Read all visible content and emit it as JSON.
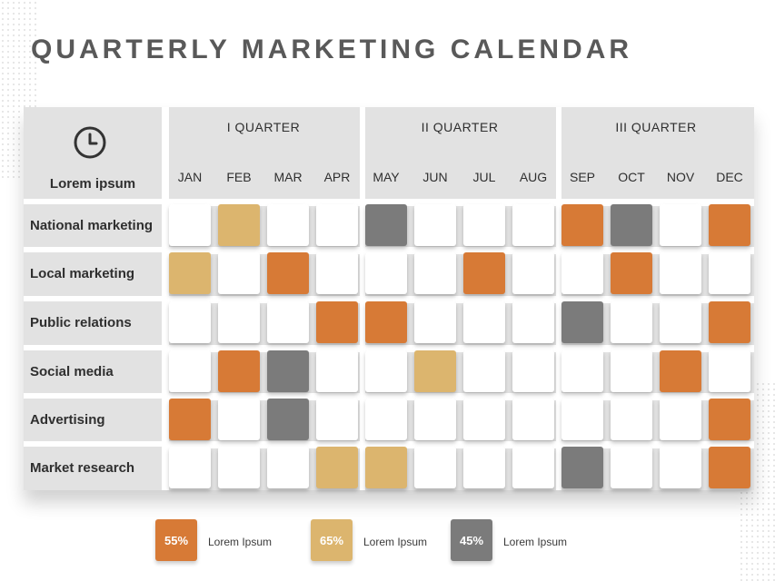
{
  "title": "QUARTERLY MARKETING CALENDAR",
  "corner_label": "Lorem ipsum",
  "corner_icon": "clock-icon",
  "quarters": [
    "I  QUARTER",
    "II  QUARTER",
    "III  QUARTER"
  ],
  "months": [
    "JAN",
    "FEB",
    "MAR",
    "APR",
    "MAY",
    "JUN",
    "JUL",
    "AUG",
    "SEP",
    "OCT",
    "NOV",
    "DEC"
  ],
  "colors": {
    "orange": "#d77a36",
    "tan": "#dcb56e",
    "gray": "#7b7b7b",
    "white": "#ffffff"
  },
  "rows": [
    {
      "label": "National marketing",
      "cells": [
        "w",
        "t",
        "w",
        "w",
        "g",
        "w",
        "w",
        "w",
        "o",
        "g",
        "w",
        "o"
      ]
    },
    {
      "label": "Local marketing",
      "cells": [
        "t",
        "w",
        "o",
        "w",
        "w",
        "w",
        "o",
        "w",
        "w",
        "o",
        "w",
        "w"
      ]
    },
    {
      "label": "Public relations",
      "cells": [
        "w",
        "w",
        "w",
        "o",
        "o",
        "w",
        "w",
        "w",
        "g",
        "w",
        "w",
        "o"
      ]
    },
    {
      "label": "Social media",
      "cells": [
        "w",
        "o",
        "g",
        "w",
        "w",
        "t",
        "w",
        "w",
        "w",
        "w",
        "o",
        "w"
      ]
    },
    {
      "label": "Advertising",
      "cells": [
        "o",
        "w",
        "g",
        "w",
        "w",
        "w",
        "w",
        "w",
        "w",
        "w",
        "w",
        "o"
      ]
    },
    {
      "label": "Market research",
      "cells": [
        "w",
        "w",
        "w",
        "t",
        "t",
        "w",
        "w",
        "w",
        "g",
        "w",
        "w",
        "o"
      ]
    }
  ],
  "legend": [
    {
      "value": "55%",
      "label": "Lorem Ipsum",
      "color": "#d77a36"
    },
    {
      "value": "65%",
      "label": "Lorem Ipsum",
      "color": "#dcb56e"
    },
    {
      "value": "45%",
      "label": "Lorem Ipsum",
      "color": "#7b7b7b"
    }
  ]
}
